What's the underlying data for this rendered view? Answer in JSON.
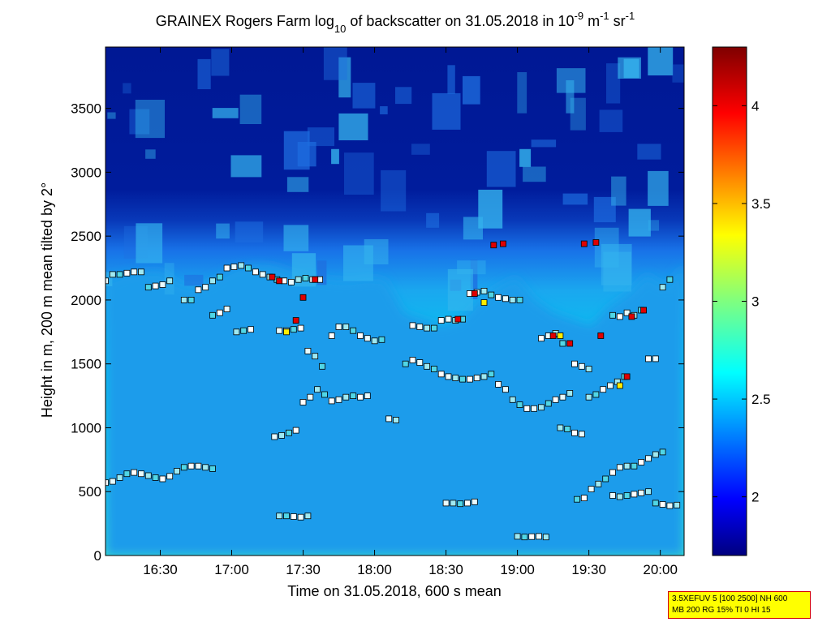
{
  "chart_data": {
    "type": "heatmap",
    "title": {
      "prefix": "GRAINEX Rogers Farm log",
      "sub": "10",
      "middle": " of backscatter on 31.05.2018 in 10",
      "sup1": "-9",
      "unit1": " m",
      "sup2": "-1",
      "unit2": " sr",
      "sup3": "-1"
    },
    "xlabel": "Time on 31.05.2018, 600 s mean",
    "ylabel": "Height in m, 200 m mean tilted by 2°",
    "x_ticks": [
      "16:30",
      "17:00",
      "17:30",
      "18:00",
      "18:30",
      "19:00",
      "19:30",
      "20:00"
    ],
    "x_tick_minutes": [
      990,
      1020,
      1050,
      1080,
      1110,
      1140,
      1170,
      1200
    ],
    "xlim_minutes": [
      967,
      1210
    ],
    "y_ticks": [
      "0",
      "500",
      "1000",
      "1500",
      "2000",
      "2500",
      "3000",
      "3500"
    ],
    "y_tick_values": [
      0,
      500,
      1000,
      1500,
      2000,
      2500,
      3000,
      3500
    ],
    "ylim": [
      0,
      3980
    ],
    "colorbar": {
      "ticks": [
        "2",
        "2.5",
        "3",
        "3.5",
        "4"
      ],
      "tick_values": [
        2,
        2.5,
        3,
        3.5,
        4
      ],
      "range": [
        1.7,
        4.3
      ]
    },
    "boundary_height_m": [
      2150,
      2200,
      2220,
      2230,
      2120,
      2100,
      2180,
      2260,
      2280,
      2270,
      2220,
      2190,
      2160,
      2150,
      2170,
      2160,
      1900,
      1850,
      1800,
      1850,
      2000,
      2100,
      2180,
      2000,
      1900,
      1850,
      1800,
      1950,
      2050,
      2200,
      2100,
      2280
    ],
    "layers": [
      {
        "name": "",
        "points": [
          [
            967,
            570
          ],
          [
            970,
            580
          ],
          [
            973,
            610
          ],
          [
            976,
            640
          ],
          [
            979,
            650
          ],
          [
            982,
            640
          ],
          [
            985,
            625
          ],
          [
            988,
            610
          ],
          [
            991,
            600
          ],
          [
            994,
            620
          ],
          [
            997,
            660
          ],
          [
            1000,
            690
          ],
          [
            1003,
            700
          ],
          [
            1006,
            700
          ],
          [
            1009,
            690
          ],
          [
            1012,
            680
          ]
        ]
      },
      {
        "name": "",
        "points": [
          [
            967,
            2150
          ],
          [
            970,
            2200
          ],
          [
            973,
            2200
          ],
          [
            976,
            2210
          ],
          [
            979,
            2220
          ],
          [
            982,
            2220
          ],
          [
            985,
            2100
          ],
          [
            988,
            2110
          ],
          [
            991,
            2120
          ],
          [
            994,
            2150
          ]
        ]
      },
      {
        "name": "",
        "points": [
          [
            1000,
            2000
          ],
          [
            1003,
            2000
          ],
          [
            1006,
            2080
          ],
          [
            1009,
            2100
          ],
          [
            1012,
            2150
          ],
          [
            1015,
            2180
          ],
          [
            1018,
            2250
          ],
          [
            1021,
            2260
          ],
          [
            1024,
            2270
          ],
          [
            1027,
            2250
          ],
          [
            1030,
            2220
          ],
          [
            1033,
            2200
          ],
          [
            1036,
            2180
          ],
          [
            1039,
            2160
          ],
          [
            1042,
            2150
          ],
          [
            1045,
            2140
          ],
          [
            1048,
            2160
          ],
          [
            1051,
            2170
          ],
          [
            1054,
            2160
          ],
          [
            1057,
            2160
          ]
        ]
      },
      {
        "name": "",
        "points": [
          [
            1012,
            1880
          ],
          [
            1015,
            1900
          ],
          [
            1018,
            1930
          ],
          [
            1022,
            1750
          ],
          [
            1025,
            1760
          ],
          [
            1028,
            1770
          ],
          [
            1040,
            1760
          ],
          [
            1043,
            1760
          ],
          [
            1046,
            1770
          ],
          [
            1049,
            1780
          ],
          [
            1052,
            1600
          ],
          [
            1055,
            1560
          ],
          [
            1058,
            1480
          ],
          [
            1062,
            1720
          ],
          [
            1065,
            1790
          ],
          [
            1068,
            1790
          ],
          [
            1071,
            1760
          ],
          [
            1074,
            1720
          ],
          [
            1077,
            1700
          ],
          [
            1080,
            1680
          ],
          [
            1083,
            1690
          ]
        ]
      },
      {
        "name": "",
        "points": [
          [
            1050,
            1200
          ],
          [
            1053,
            1240
          ],
          [
            1056,
            1300
          ],
          [
            1059,
            1260
          ],
          [
            1062,
            1210
          ],
          [
            1065,
            1220
          ],
          [
            1068,
            1240
          ],
          [
            1071,
            1250
          ],
          [
            1074,
            1240
          ],
          [
            1077,
            1250
          ]
        ]
      },
      {
        "name": "",
        "points": [
          [
            1038,
            930
          ],
          [
            1041,
            940
          ],
          [
            1044,
            960
          ],
          [
            1047,
            980
          ],
          [
            1086,
            1070
          ],
          [
            1089,
            1060
          ]
        ]
      },
      {
        "name": "",
        "points": [
          [
            1040,
            310
          ],
          [
            1043,
            310
          ],
          [
            1046,
            305
          ],
          [
            1049,
            300
          ],
          [
            1052,
            310
          ]
        ]
      },
      {
        "name": "",
        "points": [
          [
            1093,
            1500
          ],
          [
            1096,
            1530
          ],
          [
            1099,
            1510
          ],
          [
            1102,
            1480
          ],
          [
            1105,
            1460
          ],
          [
            1108,
            1420
          ],
          [
            1111,
            1400
          ],
          [
            1114,
            1390
          ],
          [
            1117,
            1380
          ],
          [
            1120,
            1380
          ],
          [
            1123,
            1390
          ],
          [
            1126,
            1400
          ],
          [
            1129,
            1420
          ],
          [
            1132,
            1340
          ],
          [
            1135,
            1300
          ],
          [
            1138,
            1220
          ],
          [
            1141,
            1180
          ],
          [
            1144,
            1150
          ],
          [
            1147,
            1150
          ],
          [
            1150,
            1160
          ],
          [
            1153,
            1190
          ],
          [
            1156,
            1220
          ],
          [
            1159,
            1240
          ],
          [
            1162,
            1270
          ]
        ]
      },
      {
        "name": "",
        "points": [
          [
            1096,
            1800
          ],
          [
            1099,
            1790
          ],
          [
            1102,
            1780
          ],
          [
            1105,
            1780
          ],
          [
            1108,
            1840
          ],
          [
            1111,
            1850
          ],
          [
            1114,
            1840
          ],
          [
            1117,
            1850
          ],
          [
            1120,
            2050
          ],
          [
            1123,
            2060
          ],
          [
            1126,
            2070
          ],
          [
            1129,
            2040
          ],
          [
            1132,
            2020
          ],
          [
            1135,
            2010
          ],
          [
            1138,
            2000
          ],
          [
            1141,
            2000
          ],
          [
            1150,
            1700
          ],
          [
            1153,
            1720
          ],
          [
            1156,
            1740
          ],
          [
            1159,
            1660
          ]
        ]
      },
      {
        "name": "",
        "points": [
          [
            1110,
            410
          ],
          [
            1113,
            410
          ],
          [
            1116,
            405
          ],
          [
            1119,
            410
          ],
          [
            1122,
            420
          ],
          [
            1140,
            150
          ],
          [
            1143,
            145
          ],
          [
            1146,
            148
          ],
          [
            1149,
            150
          ],
          [
            1152,
            145
          ]
        ]
      },
      {
        "name": "",
        "points": [
          [
            1158,
            1000
          ],
          [
            1161,
            990
          ],
          [
            1164,
            960
          ],
          [
            1167,
            950
          ],
          [
            1170,
            1240
          ],
          [
            1173,
            1260
          ],
          [
            1176,
            1300
          ],
          [
            1179,
            1330
          ],
          [
            1182,
            1360
          ],
          [
            1185,
            1400
          ]
        ]
      },
      {
        "name": "",
        "points": [
          [
            1165,
            440
          ],
          [
            1168,
            450
          ],
          [
            1171,
            520
          ],
          [
            1174,
            560
          ],
          [
            1177,
            600
          ],
          [
            1180,
            650
          ],
          [
            1183,
            690
          ],
          [
            1186,
            700
          ],
          [
            1189,
            700
          ],
          [
            1192,
            730
          ],
          [
            1195,
            760
          ],
          [
            1198,
            790
          ],
          [
            1201,
            810
          ]
        ]
      },
      {
        "name": "",
        "points": [
          [
            1164,
            1500
          ],
          [
            1167,
            1480
          ],
          [
            1170,
            1460
          ],
          [
            1180,
            1880
          ],
          [
            1183,
            1870
          ],
          [
            1186,
            1900
          ],
          [
            1189,
            1880
          ],
          [
            1192,
            1920
          ],
          [
            1195,
            1540
          ],
          [
            1198,
            1540
          ],
          [
            1201,
            2100
          ],
          [
            1204,
            2160
          ]
        ]
      },
      {
        "name": "",
        "points": [
          [
            1180,
            470
          ],
          [
            1183,
            460
          ],
          [
            1186,
            470
          ],
          [
            1189,
            480
          ],
          [
            1192,
            490
          ],
          [
            1195,
            500
          ],
          [
            1198,
            410
          ],
          [
            1201,
            400
          ],
          [
            1204,
            390
          ],
          [
            1207,
            395
          ]
        ]
      }
    ],
    "high_points": [
      [
        1037,
        2180
      ],
      [
        1040,
        2150
      ],
      [
        1043,
        1750
      ],
      [
        1047,
        1840
      ],
      [
        1050,
        2020
      ],
      [
        1055,
        2160
      ],
      [
        1122,
        2050
      ],
      [
        1126,
        1980
      ],
      [
        1115,
        1850
      ],
      [
        1130,
        2430
      ],
      [
        1134,
        2440
      ],
      [
        1155,
        1720
      ],
      [
        1158,
        1720
      ],
      [
        1162,
        1660
      ],
      [
        1168,
        2440
      ],
      [
        1173,
        2450
      ],
      [
        1175,
        1720
      ],
      [
        1183,
        1330
      ],
      [
        1186,
        1400
      ],
      [
        1188,
        1870
      ],
      [
        1193,
        1920
      ]
    ]
  },
  "info_box": {
    "line1": "3.5XEFUV 5 [100 2500] NH 600",
    "line2": "MB 200 RG 15% TI 0 HI 15"
  }
}
